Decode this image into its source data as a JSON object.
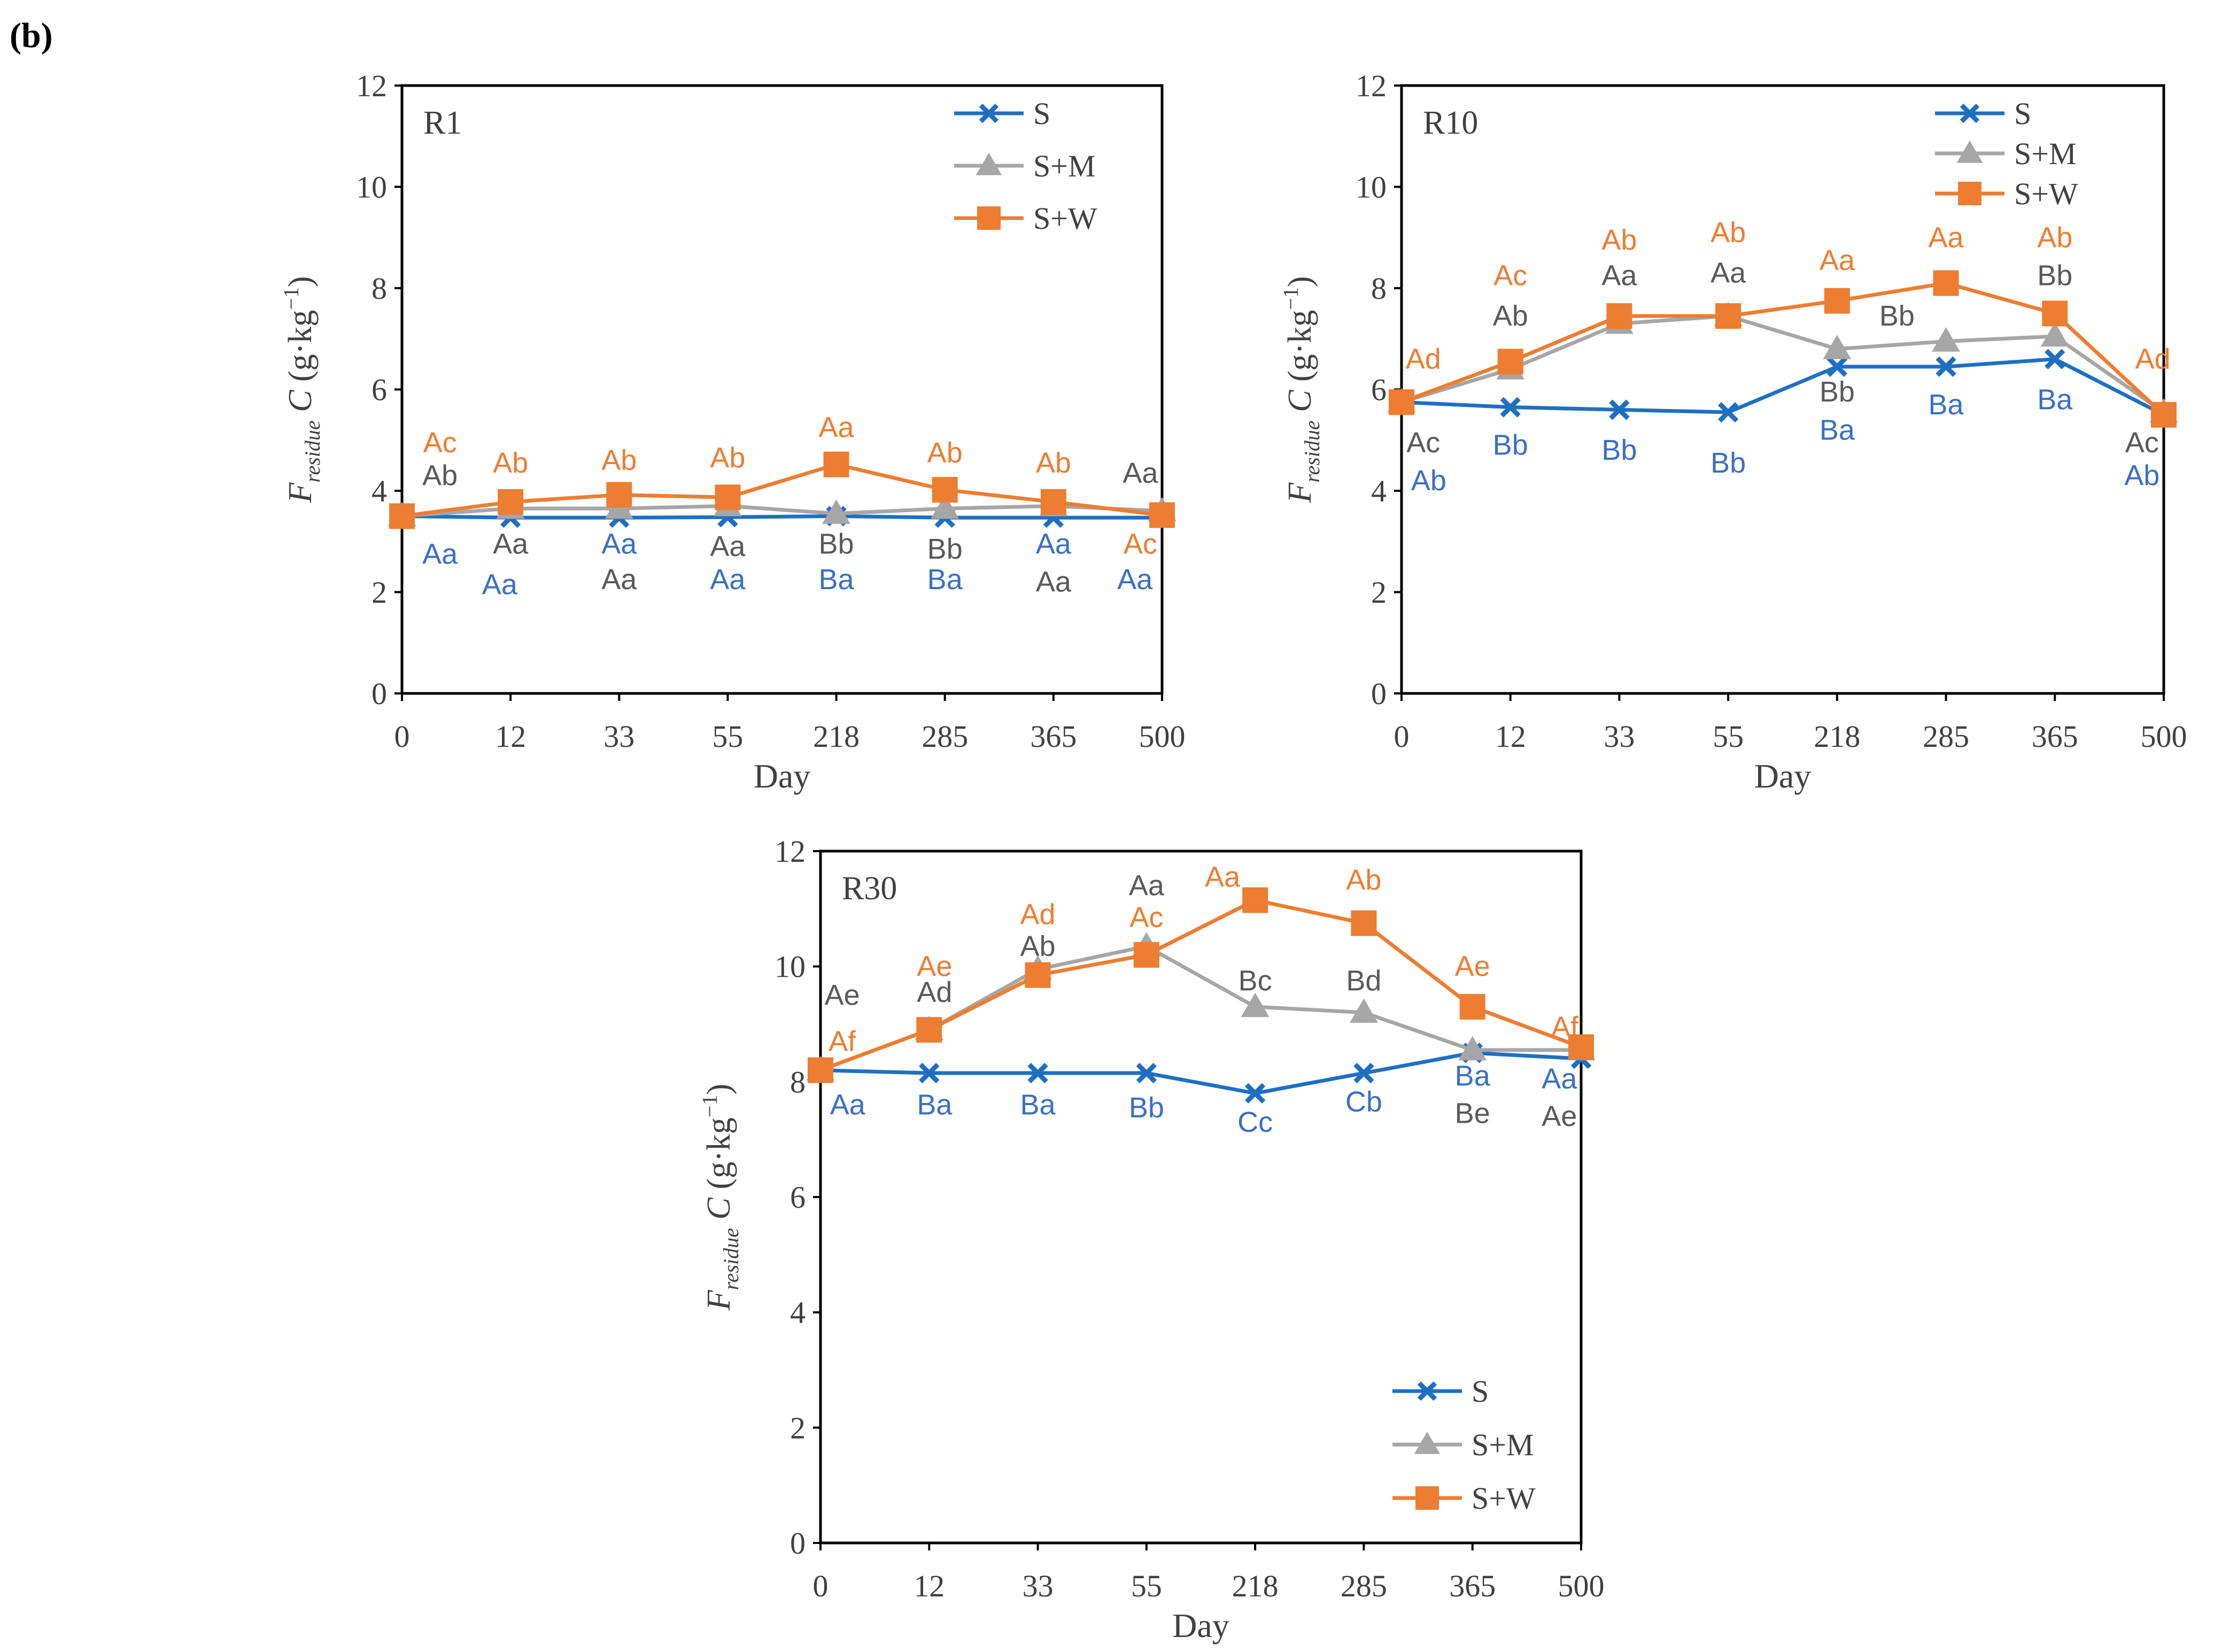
{
  "figure_label": "(b)",
  "colors": {
    "S": "#1f6fc1",
    "SM": "#a6a6a6",
    "SW": "#ed7d31",
    "axis": "#000000",
    "text": "#404040",
    "grey_label": "#595959",
    "blue_label": "#3a6fc4"
  },
  "chart_data": [
    {
      "type": "line",
      "title": "R1",
      "categories": [
        "0",
        "12",
        "33",
        "55",
        "218",
        "285",
        "365",
        "500"
      ],
      "xlabel": "Day",
      "ylabel": {
        "main": "F",
        "sub": "residue",
        "var": "C",
        "unit": "(g·kg",
        "sup": "−1",
        "close": ")"
      },
      "ylim": [
        0,
        12
      ],
      "yticks": [
        "0",
        "2",
        "4",
        "6",
        "8",
        "10",
        "12"
      ],
      "legend_position": "top-right",
      "series": [
        {
          "name": "S",
          "color": "#1f6fc1",
          "marker": "x",
          "values": [
            3.5,
            3.47,
            3.47,
            3.48,
            3.5,
            3.47,
            3.47,
            3.47
          ]
        },
        {
          "name": "S+M",
          "color": "#a6a6a6",
          "marker": "triangle",
          "values": [
            3.5,
            3.65,
            3.65,
            3.7,
            3.55,
            3.65,
            3.7,
            3.6
          ]
        },
        {
          "name": "S+W",
          "color": "#ed7d31",
          "marker": "square",
          "values": [
            3.5,
            3.78,
            3.92,
            3.87,
            4.52,
            4.02,
            3.78,
            3.52
          ]
        }
      ],
      "annotations": [
        {
          "text": "Ac",
          "color": "orange",
          "cat": 0,
          "y": 4.95,
          "dx": 0.35
        },
        {
          "text": "Ab",
          "color": "grey",
          "cat": 0,
          "y": 4.3,
          "dx": 0.35
        },
        {
          "text": "Aa",
          "color": "blue",
          "cat": 0,
          "y": 2.75,
          "dx": 0.35
        },
        {
          "text": "Ab",
          "color": "orange",
          "cat": 1,
          "y": 4.55,
          "dx": 0
        },
        {
          "text": "Aa",
          "color": "grey",
          "cat": 1,
          "y": 2.95,
          "dx": 0
        },
        {
          "text": "Aa",
          "color": "blue",
          "cat": 1,
          "y": 2.15,
          "dx": -0.1
        },
        {
          "text": "Ab",
          "color": "orange",
          "cat": 2,
          "y": 4.6,
          "dx": 0
        },
        {
          "text": "Aa",
          "color": "blue",
          "cat": 2,
          "y": 2.95,
          "dx": 0
        },
        {
          "text": "Aa",
          "color": "grey",
          "cat": 2,
          "y": 2.25,
          "dx": 0
        },
        {
          "text": "Ab",
          "color": "orange",
          "cat": 3,
          "y": 4.65,
          "dx": 0
        },
        {
          "text": "Aa",
          "color": "grey",
          "cat": 3,
          "y": 2.9,
          "dx": 0
        },
        {
          "text": "Aa",
          "color": "blue",
          "cat": 3,
          "y": 2.25,
          "dx": 0
        },
        {
          "text": "Aa",
          "color": "orange",
          "cat": 4,
          "y": 5.25,
          "dx": 0
        },
        {
          "text": "Bb",
          "color": "grey",
          "cat": 4,
          "y": 2.95,
          "dx": 0
        },
        {
          "text": "Ba",
          "color": "blue",
          "cat": 4,
          "y": 2.25,
          "dx": 0
        },
        {
          "text": "Ab",
          "color": "orange",
          "cat": 5,
          "y": 4.75,
          "dx": 0
        },
        {
          "text": "Bb",
          "color": "grey",
          "cat": 5,
          "y": 2.85,
          "dx": 0
        },
        {
          "text": "Ba",
          "color": "blue",
          "cat": 5,
          "y": 2.25,
          "dx": 0
        },
        {
          "text": "Ab",
          "color": "orange",
          "cat": 6,
          "y": 4.55,
          "dx": 0
        },
        {
          "text": "Aa",
          "color": "blue",
          "cat": 6,
          "y": 2.95,
          "dx": 0
        },
        {
          "text": "Aa",
          "color": "grey",
          "cat": 6,
          "y": 2.2,
          "dx": 0
        },
        {
          "text": "Aa",
          "color": "grey",
          "cat": 7,
          "y": 4.35,
          "dx": -0.2
        },
        {
          "text": "Ac",
          "color": "orange",
          "cat": 7,
          "y": 2.95,
          "dx": -0.2
        },
        {
          "text": "Aa",
          "color": "blue",
          "cat": 7,
          "y": 2.25,
          "dx": -0.25
        }
      ]
    },
    {
      "type": "line",
      "title": "R10",
      "categories": [
        "0",
        "12",
        "33",
        "55",
        "218",
        "285",
        "365",
        "500"
      ],
      "xlabel": "Day",
      "ylabel": {
        "main": "F",
        "sub": "residue",
        "var": "C",
        "unit": "(g·kg",
        "sup": "−1",
        "close": ")"
      },
      "ylim": [
        0,
        12
      ],
      "yticks": [
        "0",
        "2",
        "4",
        "6",
        "8",
        "10",
        "12"
      ],
      "legend_position": "top-right",
      "series": [
        {
          "name": "S",
          "color": "#1f6fc1",
          "marker": "x",
          "values": [
            5.75,
            5.65,
            5.6,
            5.55,
            6.45,
            6.45,
            6.6,
            5.5
          ]
        },
        {
          "name": "S+M",
          "color": "#a6a6a6",
          "marker": "triangle",
          "values": [
            5.75,
            6.4,
            7.3,
            7.45,
            6.8,
            6.95,
            7.05,
            5.55
          ]
        },
        {
          "name": "S+W",
          "color": "#ed7d31",
          "marker": "square",
          "values": [
            5.75,
            6.55,
            7.45,
            7.45,
            7.75,
            8.1,
            7.5,
            5.5
          ]
        }
      ],
      "annotations": [
        {
          "text": "Ad",
          "color": "orange",
          "cat": 0,
          "y": 6.6,
          "dx": 0.2
        },
        {
          "text": "Ac",
          "color": "grey",
          "cat": 0,
          "y": 4.95,
          "dx": 0.2
        },
        {
          "text": "Ab",
          "color": "blue",
          "cat": 0,
          "y": 4.2,
          "dx": 0.25
        },
        {
          "text": "Ac",
          "color": "orange",
          "cat": 1,
          "y": 8.25,
          "dx": 0
        },
        {
          "text": "Ab",
          "color": "grey",
          "cat": 1,
          "y": 7.45,
          "dx": 0
        },
        {
          "text": "Bb",
          "color": "blue",
          "cat": 1,
          "y": 4.9,
          "dx": 0
        },
        {
          "text": "Ab",
          "color": "orange",
          "cat": 2,
          "y": 8.95,
          "dx": 0
        },
        {
          "text": "Aa",
          "color": "grey",
          "cat": 2,
          "y": 8.25,
          "dx": 0
        },
        {
          "text": "Bb",
          "color": "blue",
          "cat": 2,
          "y": 4.8,
          "dx": 0
        },
        {
          "text": "Ab",
          "color": "orange",
          "cat": 3,
          "y": 9.1,
          "dx": 0
        },
        {
          "text": "Aa",
          "color": "grey",
          "cat": 3,
          "y": 8.3,
          "dx": 0
        },
        {
          "text": "Bb",
          "color": "blue",
          "cat": 3,
          "y": 4.55,
          "dx": 0
        },
        {
          "text": "Aa",
          "color": "orange",
          "cat": 4,
          "y": 8.55,
          "dx": 0
        },
        {
          "text": "Bb",
          "color": "grey",
          "cat": 4,
          "y": 5.95,
          "dx": 0
        },
        {
          "text": "Ba",
          "color": "blue",
          "cat": 4,
          "y": 5.2,
          "dx": 0
        },
        {
          "text": "Aa",
          "color": "orange",
          "cat": 5,
          "y": 9.0,
          "dx": 0
        },
        {
          "text": "Bb",
          "color": "grey",
          "cat": 5,
          "y": 7.45,
          "dx": -0.45
        },
        {
          "text": "Ba",
          "color": "blue",
          "cat": 5,
          "y": 5.7,
          "dx": 0
        },
        {
          "text": "Ab",
          "color": "orange",
          "cat": 6,
          "y": 9.0,
          "dx": 0
        },
        {
          "text": "Bb",
          "color": "grey",
          "cat": 6,
          "y": 8.25,
          "dx": 0
        },
        {
          "text": "Ba",
          "color": "blue",
          "cat": 6,
          "y": 5.8,
          "dx": 0
        },
        {
          "text": "Ad",
          "color": "orange",
          "cat": 7,
          "y": 6.6,
          "dx": -0.1
        },
        {
          "text": "Ac",
          "color": "grey",
          "cat": 7,
          "y": 4.95,
          "dx": -0.2
        },
        {
          "text": "Ab",
          "color": "blue",
          "cat": 7,
          "y": 4.3,
          "dx": -0.2
        }
      ]
    },
    {
      "type": "line",
      "title": "R30",
      "categories": [
        "0",
        "12",
        "33",
        "55",
        "218",
        "285",
        "365",
        "500"
      ],
      "xlabel": "Day",
      "ylabel": {
        "main": "F",
        "sub": "residue",
        "var": "C",
        "unit": "(g·kg",
        "sup": "−1",
        "close": ")"
      },
      "ylim": [
        0,
        12
      ],
      "yticks": [
        "0",
        "2",
        "4",
        "6",
        "8",
        "10",
        "12"
      ],
      "legend_position": "bottom-right",
      "series": [
        {
          "name": "S",
          "color": "#1f6fc1",
          "marker": "x",
          "values": [
            8.2,
            8.15,
            8.15,
            8.15,
            7.8,
            8.15,
            8.5,
            8.4
          ]
        },
        {
          "name": "S+M",
          "color": "#a6a6a6",
          "marker": "triangle",
          "values": [
            8.2,
            8.9,
            9.95,
            10.35,
            9.3,
            9.2,
            8.55,
            8.55
          ]
        },
        {
          "name": "S+W",
          "color": "#ed7d31",
          "marker": "square",
          "values": [
            8.2,
            8.9,
            9.85,
            10.2,
            11.15,
            10.75,
            9.3,
            8.6
          ]
        }
      ],
      "annotations": [
        {
          "text": "Ae",
          "color": "grey",
          "cat": 0,
          "y": 9.5,
          "dx": 0.2
        },
        {
          "text": "Af",
          "color": "orange",
          "cat": 0,
          "y": 8.7,
          "dx": 0.2
        },
        {
          "text": "Aa",
          "color": "blue",
          "cat": 0,
          "y": 7.6,
          "dx": 0.25
        },
        {
          "text": "Ae",
          "color": "orange",
          "cat": 1,
          "y": 10.0,
          "dx": 0.05
        },
        {
          "text": "Ad",
          "color": "grey",
          "cat": 1,
          "y": 9.55,
          "dx": 0.05
        },
        {
          "text": "Ba",
          "color": "blue",
          "cat": 1,
          "y": 7.6,
          "dx": 0.05
        },
        {
          "text": "Ad",
          "color": "orange",
          "cat": 2,
          "y": 10.9,
          "dx": 0
        },
        {
          "text": "Ab",
          "color": "grey",
          "cat": 2,
          "y": 10.35,
          "dx": 0
        },
        {
          "text": "Ba",
          "color": "blue",
          "cat": 2,
          "y": 7.6,
          "dx": 0
        },
        {
          "text": "Aa",
          "color": "grey",
          "cat": 3,
          "y": 11.4,
          "dx": 0
        },
        {
          "text": "Ac",
          "color": "orange",
          "cat": 3,
          "y": 10.85,
          "dx": 0
        },
        {
          "text": "Bb",
          "color": "blue",
          "cat": 3,
          "y": 7.55,
          "dx": 0
        },
        {
          "text": "Aa",
          "color": "orange",
          "cat": 4,
          "y": 11.55,
          "dx": -0.3
        },
        {
          "text": "Bc",
          "color": "grey",
          "cat": 4,
          "y": 9.75,
          "dx": 0
        },
        {
          "text": "Cc",
          "color": "blue",
          "cat": 4,
          "y": 7.3,
          "dx": 0
        },
        {
          "text": "Ab",
          "color": "orange",
          "cat": 5,
          "y": 11.5,
          "dx": 0
        },
        {
          "text": "Bd",
          "color": "grey",
          "cat": 5,
          "y": 9.75,
          "dx": 0
        },
        {
          "text": "Cb",
          "color": "blue",
          "cat": 5,
          "y": 7.65,
          "dx": 0
        },
        {
          "text": "Ae",
          "color": "orange",
          "cat": 6,
          "y": 10.0,
          "dx": 0
        },
        {
          "text": "Ba",
          "color": "blue",
          "cat": 6,
          "y": 8.1,
          "dx": 0
        },
        {
          "text": "Be",
          "color": "grey",
          "cat": 6,
          "y": 7.45,
          "dx": 0
        },
        {
          "text": "Af",
          "color": "orange",
          "cat": 7,
          "y": 8.95,
          "dx": -0.15
        },
        {
          "text": "Aa",
          "color": "blue",
          "cat": 7,
          "y": 8.05,
          "dx": -0.2
        },
        {
          "text": "Ae",
          "color": "grey",
          "cat": 7,
          "y": 7.4,
          "dx": -0.2
        }
      ]
    }
  ]
}
